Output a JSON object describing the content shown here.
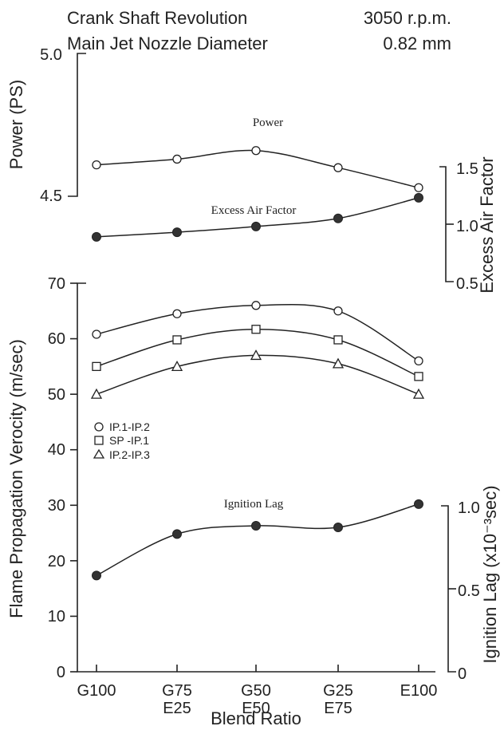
{
  "header": {
    "line1_label": "Crank Shaft Revolution",
    "line1_value": "3050 r.p.m.",
    "line2_label": "Main Jet Nozzle Diameter",
    "line2_value": "0.82 mm"
  },
  "chart_data": [
    {
      "type": "line",
      "title": "",
      "x_categories": [
        "G100",
        "G75\nE25",
        "G50\nE50",
        "G25\nE75",
        "E100"
      ],
      "xlabel": "Blend Ratio",
      "ylabel": "Power (PS)",
      "ylim": [
        4.5,
        5.0
      ],
      "yticks": [
        "4.5",
        "5.0"
      ],
      "series": [
        {
          "name": "Power",
          "marker": "circle-open",
          "values": [
            4.61,
            4.63,
            4.66,
            4.6,
            4.53
          ]
        }
      ]
    },
    {
      "type": "line",
      "title": "",
      "x_categories": [
        "G100",
        "G75\nE25",
        "G50\nE50",
        "G25\nE75",
        "E100"
      ],
      "ylabel": "Excess Air Factor",
      "ylim": [
        0.5,
        1.5
      ],
      "yticks": [
        "0.5",
        "1.0",
        "1.5"
      ],
      "series": [
        {
          "name": "Excess Air Factor",
          "marker": "circle-filled",
          "values": [
            0.89,
            0.93,
            0.98,
            1.05,
            1.23
          ]
        }
      ]
    },
    {
      "type": "line",
      "title": "",
      "x_categories": [
        "G100",
        "G75\nE25",
        "G50\nE50",
        "G25\nE75",
        "E100"
      ],
      "xlabel": "Blend Ratio",
      "ylabel": "Flame Propagation Verocity (m/sec)",
      "ylim": [
        0,
        70
      ],
      "yticks": [
        "0",
        "10",
        "20",
        "30",
        "40",
        "50",
        "60",
        "70"
      ],
      "legend_position": "left-middle",
      "series": [
        {
          "name": "IP.1-IP.2",
          "marker": "circle-open",
          "values": [
            60.8,
            64.5,
            66.0,
            65.0,
            56.0
          ]
        },
        {
          "name": "SP -IP.1",
          "marker": "square-open",
          "values": [
            55.0,
            59.8,
            61.7,
            59.8,
            53.2
          ]
        },
        {
          "name": "IP.2-IP.3",
          "marker": "triangle-open",
          "values": [
            50.0,
            55.0,
            57.0,
            55.5,
            50.0
          ]
        }
      ]
    },
    {
      "type": "line",
      "title": "",
      "x_categories": [
        "G100",
        "G75\nE25",
        "G50\nE50",
        "G25\nE75",
        "E100"
      ],
      "ylabel": "Ignition Lag (x10⁻³sec)",
      "ylim": [
        0,
        1.0
      ],
      "yticks": [
        "0",
        "0.5",
        "1.0"
      ],
      "series": [
        {
          "name": "Ignition Lag",
          "marker": "circle-filled",
          "values": [
            0.58,
            0.83,
            0.88,
            0.87,
            1.01
          ]
        }
      ]
    }
  ]
}
